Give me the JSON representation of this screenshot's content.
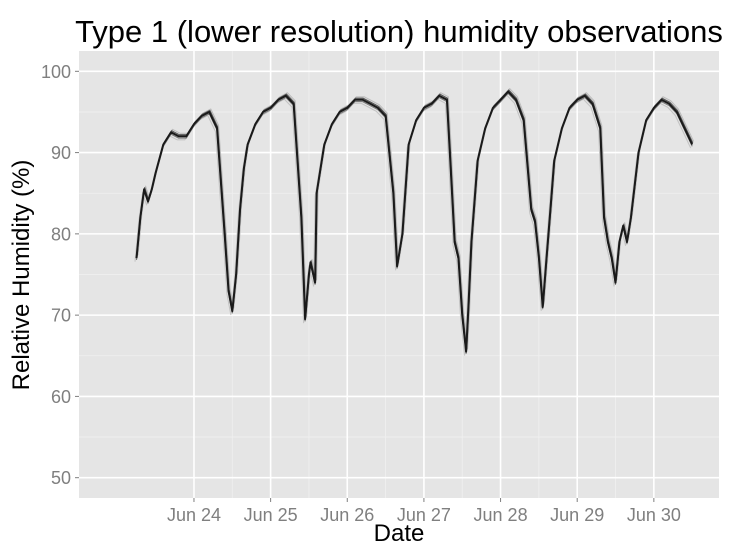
{
  "chart_data": {
    "type": "line",
    "title": "Type 1 (lower resolution) humidity observations",
    "xlabel": "Date",
    "ylabel": "Relative Humidity (%)",
    "x_unit": "days (June, fractional)",
    "xlim": [
      22.5,
      30.85
    ],
    "ylim": [
      47.5,
      102.5
    ],
    "x_ticks": [
      24,
      25,
      26,
      27,
      28,
      29,
      30
    ],
    "x_tick_labels": [
      "Jun 24",
      "Jun 25",
      "Jun 26",
      "Jun 27",
      "Jun 28",
      "Jun 29",
      "Jun 30"
    ],
    "y_ticks": [
      50,
      60,
      70,
      80,
      90,
      100
    ],
    "y_tick_labels": [
      "50",
      "60",
      "70",
      "80",
      "90",
      "100"
    ],
    "grid": true,
    "background": "#e5e5e5",
    "line_color": "#1a1a1a",
    "series": [
      {
        "x": [
          23.25,
          23.3,
          23.35,
          23.4,
          23.45,
          23.5,
          23.6,
          23.7,
          23.8,
          23.9,
          24.0,
          24.1,
          24.2,
          24.3,
          24.4,
          24.45,
          24.5,
          24.55,
          24.6,
          24.65,
          24.7,
          24.8,
          24.9,
          25.0,
          25.1,
          25.2,
          25.3,
          25.4,
          25.45,
          25.5,
          25.52,
          25.58,
          25.6,
          25.7,
          25.8,
          25.9,
          26.0,
          26.1,
          26.2,
          26.3,
          26.4,
          26.5,
          26.6,
          26.65,
          26.72,
          26.8,
          26.9,
          27.0,
          27.1,
          27.2,
          27.3,
          27.35,
          27.4,
          27.45,
          27.5,
          27.55,
          27.58,
          27.62,
          27.7,
          27.8,
          27.9,
          28.0,
          28.1,
          28.2,
          28.3,
          28.4,
          28.45,
          28.5,
          28.55,
          28.6,
          28.65,
          28.7,
          28.8,
          28.9,
          29.0,
          29.1,
          29.2,
          29.3,
          29.35,
          29.4,
          29.45,
          29.5,
          29.55,
          29.6,
          29.65,
          29.7,
          29.75,
          29.8,
          29.9,
          30.0,
          30.1,
          30.2,
          30.3,
          30.4,
          30.5
        ],
        "y": [
          77,
          82,
          85.5,
          84,
          85.5,
          87.5,
          91,
          92.5,
          92,
          92,
          93.5,
          94.5,
          95,
          93,
          80,
          73,
          70.5,
          75,
          83,
          88,
          91,
          93.5,
          95,
          95.5,
          96.5,
          97,
          96,
          82,
          69.5,
          75,
          76.5,
          74,
          85,
          91,
          93.5,
          95,
          95.5,
          96.5,
          96.5,
          96,
          95.5,
          94.5,
          85,
          76,
          80,
          91,
          94,
          95.5,
          96,
          97,
          96.5,
          88,
          79,
          77,
          70,
          65.5,
          71,
          79,
          89,
          93,
          95.5,
          96.5,
          97.5,
          96.5,
          94,
          83,
          81.5,
          77,
          71,
          77,
          83,
          89,
          93,
          95.5,
          96.5,
          97,
          96,
          93,
          82,
          79,
          77,
          74,
          79,
          81,
          79,
          82,
          86,
          90,
          94,
          95.5,
          96.5,
          96,
          95,
          93,
          91
        ]
      }
    ]
  }
}
